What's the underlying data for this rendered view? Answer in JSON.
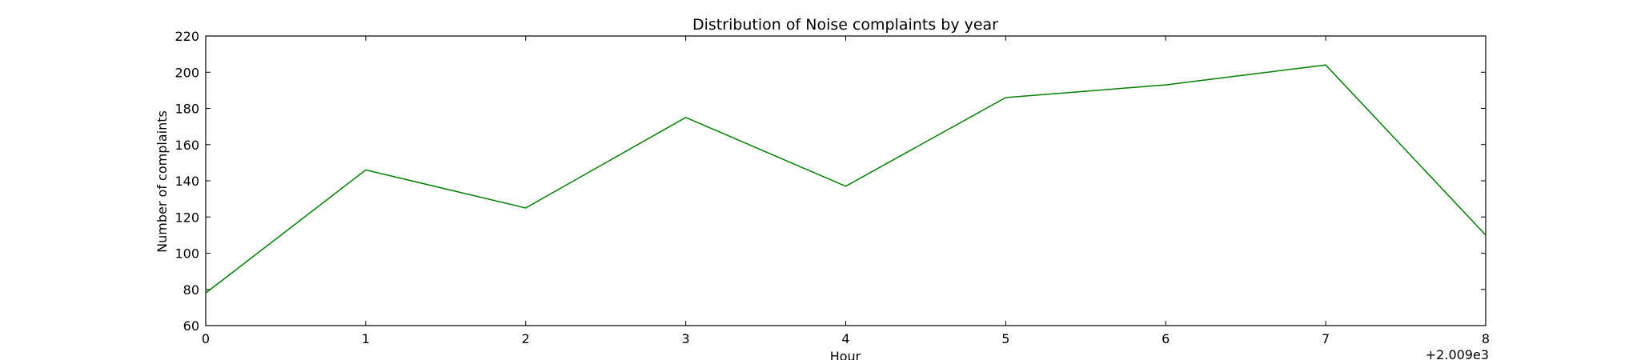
{
  "chart_data": {
    "type": "line",
    "title": "Distribution of  Noise complaints by year",
    "xlabel": "Hour",
    "ylabel": "Number of complaints",
    "x_offset_label": "+2.009e3",
    "xlim": [
      0,
      8
    ],
    "ylim": [
      60,
      220
    ],
    "x_ticks": [
      "0",
      "1",
      "2",
      "3",
      "4",
      "5",
      "6",
      "7",
      "8"
    ],
    "y_ticks": [
      "60",
      "80",
      "100",
      "120",
      "140",
      "160",
      "180",
      "200",
      "220"
    ],
    "grid": false,
    "series": [
      {
        "color": "#008000",
        "x": [
          0,
          1,
          2,
          3,
          4,
          5,
          6,
          7,
          8
        ],
        "values": [
          78,
          146,
          125,
          175,
          137,
          186,
          193,
          204,
          110
        ]
      }
    ]
  }
}
